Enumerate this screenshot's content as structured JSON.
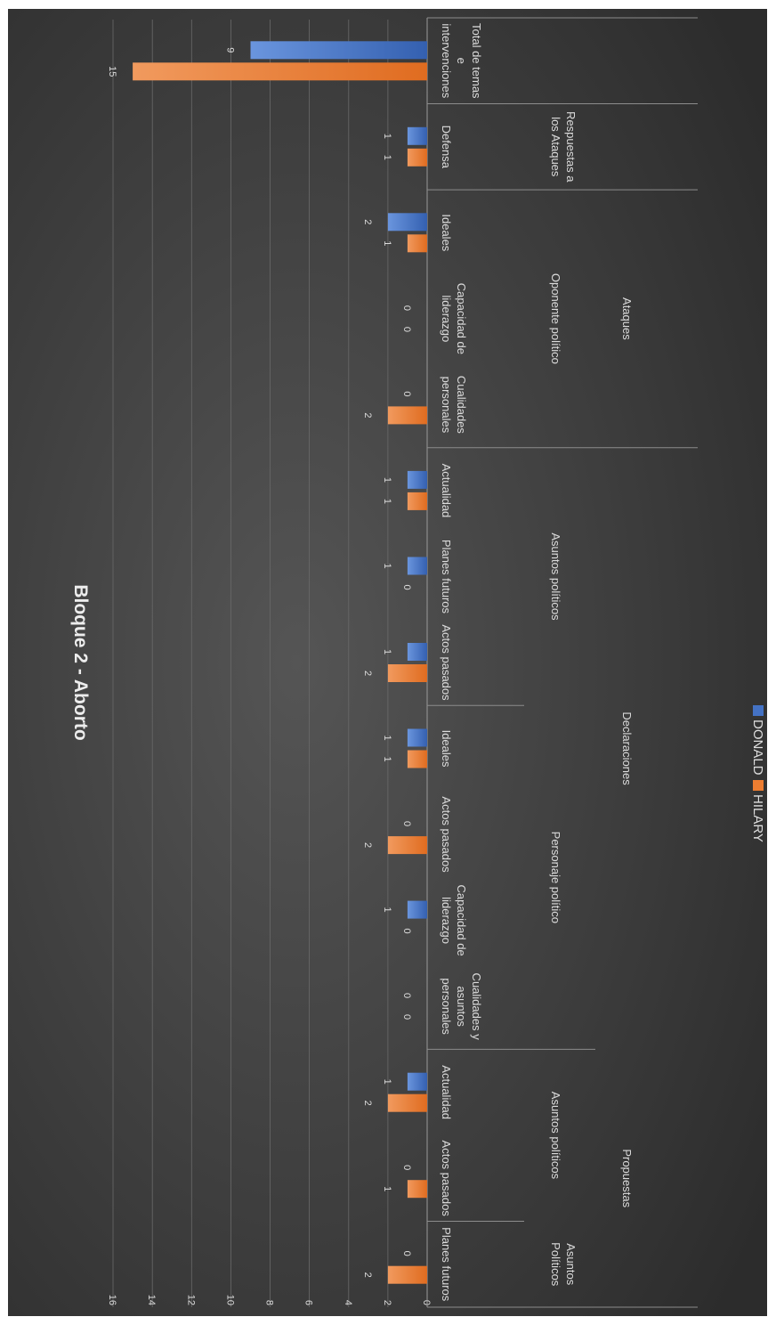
{
  "chart_data": {
    "type": "bar",
    "title": "Bloque 2 - Aborto",
    "orientation": "rotated-90-clockwise",
    "ylim": [
      0,
      16
    ],
    "yticks": [
      0,
      2,
      4,
      6,
      8,
      10,
      12,
      14,
      16
    ],
    "grid": true,
    "legend_position": "bottom",
    "series": [
      {
        "name": "DONALD",
        "color": "#4472c4",
        "values": [
          0,
          0,
          1,
          0,
          1,
          0,
          1,
          1,
          1,
          1,
          0,
          0,
          2,
          1,
          9
        ]
      },
      {
        "name": "HILARY",
        "color": "#ed7d31",
        "values": [
          2,
          1,
          2,
          0,
          0,
          2,
          1,
          2,
          0,
          1,
          2,
          0,
          1,
          1,
          15
        ]
      }
    ],
    "categories": [
      {
        "label": [
          "Planes futuros"
        ]
      },
      {
        "label": [
          "Actos pasados"
        ]
      },
      {
        "label": [
          "Actualidad"
        ]
      },
      {
        "label": [
          "Cualidades y",
          "asuntos",
          "personales"
        ]
      },
      {
        "label": [
          "Capacidad de",
          "liderazgo"
        ]
      },
      {
        "label": [
          "Actos pasados"
        ]
      },
      {
        "label": [
          "Ideales"
        ]
      },
      {
        "label": [
          "Actos pasados"
        ]
      },
      {
        "label": [
          "Planes futuros"
        ]
      },
      {
        "label": [
          "Actualidad"
        ]
      },
      {
        "label": [
          "Cualidades",
          "personales"
        ]
      },
      {
        "label": [
          "Capacidad de",
          "liderazgo"
        ]
      },
      {
        "label": [
          "Ideales"
        ]
      },
      {
        "label": [
          "Defensa"
        ]
      },
      {
        "label": [
          "Total de temas",
          "e",
          "intervenciones"
        ]
      }
    ],
    "groups_level2": [
      {
        "label": [
          "Asuntos",
          "Políticos"
        ],
        "start": 0,
        "end": 0
      },
      {
        "label": [
          "Asuntos políticos"
        ],
        "start": 1,
        "end": 2
      },
      {
        "label": [
          "Personaje político"
        ],
        "start": 3,
        "end": 6
      },
      {
        "label": [
          "Asuntos políticos"
        ],
        "start": 7,
        "end": 9
      },
      {
        "label": [
          "Oponente político"
        ],
        "start": 10,
        "end": 12
      },
      {
        "label": [
          "Respuestas a",
          "los Ataques"
        ],
        "start": 13,
        "end": 13
      }
    ],
    "groups_level3": [
      {
        "label": [
          "Propuestas"
        ],
        "start": 0,
        "end": 2
      },
      {
        "label": [
          "Declaraciones"
        ],
        "start": 3,
        "end": 9
      },
      {
        "label": [
          "Ataques"
        ],
        "start": 10,
        "end": 12
      }
    ]
  }
}
